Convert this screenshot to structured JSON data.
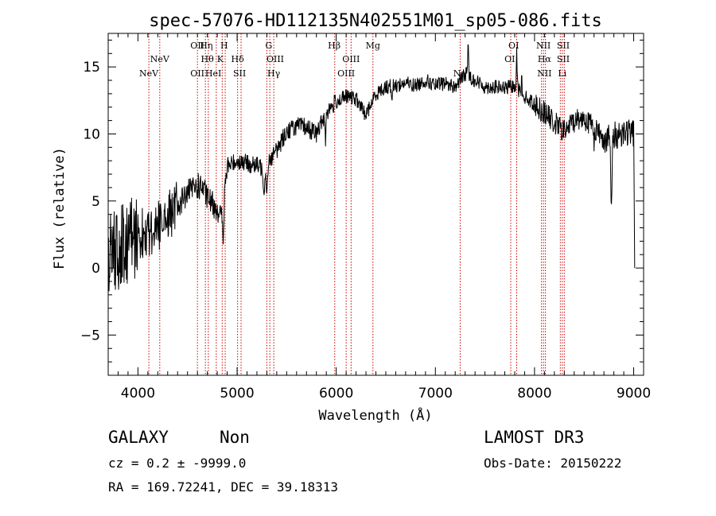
{
  "chart_data": {
    "type": "line",
    "title": "spec-57076-HD112135N402551M01_sp05-086.fits",
    "xlabel": "Wavelength (Å)",
    "ylabel": "Flux (relative)",
    "xlim": [
      3700,
      9100
    ],
    "ylim": [
      -8,
      17.5
    ],
    "x_ticks": [
      4000,
      5000,
      6000,
      7000,
      8000,
      9000
    ],
    "y_ticks": [
      -5,
      0,
      5,
      10,
      15
    ],
    "continuum_anchors": [
      [
        3700,
        1.0
      ],
      [
        3800,
        1.5
      ],
      [
        3900,
        2.0
      ],
      [
        4000,
        2.5
      ],
      [
        4100,
        2.8
      ],
      [
        4200,
        3.2
      ],
      [
        4300,
        3.8
      ],
      [
        4400,
        4.6
      ],
      [
        4500,
        5.6
      ],
      [
        4600,
        6.1
      ],
      [
        4650,
        6.0
      ],
      [
        4700,
        5.2
      ],
      [
        4750,
        4.8
      ],
      [
        4800,
        4.5
      ],
      [
        4850,
        3.6
      ],
      [
        4900,
        7.6
      ],
      [
        5000,
        8.0
      ],
      [
        5100,
        7.8
      ],
      [
        5200,
        7.6
      ],
      [
        5250,
        7.5
      ],
      [
        5300,
        6.6
      ],
      [
        5320,
        8.0
      ],
      [
        5400,
        8.8
      ],
      [
        5500,
        10.2
      ],
      [
        5600,
        10.6
      ],
      [
        5700,
        10.5
      ],
      [
        5800,
        10.0
      ],
      [
        5850,
        10.8
      ],
      [
        5900,
        11.6
      ],
      [
        6000,
        12.4
      ],
      [
        6100,
        12.8
      ],
      [
        6200,
        12.6
      ],
      [
        6300,
        11.4
      ],
      [
        6400,
        13.0
      ],
      [
        6500,
        13.5
      ],
      [
        6600,
        13.6
      ],
      [
        6700,
        13.8
      ],
      [
        6800,
        13.6
      ],
      [
        6900,
        14.0
      ],
      [
        7000,
        13.6
      ],
      [
        7100,
        13.8
      ],
      [
        7200,
        13.5
      ],
      [
        7300,
        14.5
      ],
      [
        7400,
        14.0
      ],
      [
        7500,
        13.5
      ],
      [
        7600,
        13.5
      ],
      [
        7700,
        13.4
      ],
      [
        7800,
        13.6
      ],
      [
        7900,
        12.8
      ],
      [
        8000,
        12.2
      ],
      [
        8100,
        11.6
      ],
      [
        8200,
        10.8
      ],
      [
        8300,
        10.2
      ],
      [
        8400,
        11.0
      ],
      [
        8500,
        11.2
      ],
      [
        8600,
        10.5
      ],
      [
        8700,
        9.6
      ],
      [
        8800,
        9.8
      ],
      [
        8900,
        10.2
      ],
      [
        9000,
        10.0
      ]
    ],
    "absorption_features": [
      {
        "x": 4861,
        "depth": 2.5,
        "width": 6
      },
      {
        "x": 5270,
        "depth": 1.2,
        "width": 8
      },
      {
        "x": 5300,
        "depth": 1.0,
        "width": 4
      },
      {
        "x": 5892,
        "depth": 1.8,
        "width": 6
      },
      {
        "x": 6563,
        "depth": 0.8,
        "width": 6
      },
      {
        "x": 8600,
        "depth": 1.0,
        "width": 5
      },
      {
        "x": 8775,
        "depth": 6.0,
        "width": 8
      }
    ],
    "emission_features": [
      {
        "x": 7330,
        "height": 2.5,
        "width": 6
      },
      {
        "x": 7820,
        "height": 3.5,
        "width": 5
      },
      {
        "x": 7870,
        "height": 2.0,
        "width": 4
      }
    ],
    "end_drop": {
      "x": 9010,
      "value": 0
    },
    "spectral_lines": [
      {
        "label": "NeV",
        "x": 4110,
        "row": 3
      },
      {
        "label": "NeV",
        "x": 4220,
        "row": 2
      },
      {
        "label": "OII",
        "x": 4600,
        "row": 1
      },
      {
        "label": "OII",
        "x": 4600,
        "row": 3
      },
      {
        "label": "Hη",
        "x": 4690,
        "row": 1
      },
      {
        "label": "Hθ",
        "x": 4700,
        "row": 2
      },
      {
        "label": "HeI",
        "x": 4760,
        "row": 3
      },
      {
        "label": "K",
        "x": 4830,
        "row": 2
      },
      {
        "label": "H",
        "x": 4870,
        "row": 1
      },
      {
        "label": "Hδ",
        "x": 5005,
        "row": 2
      },
      {
        "label": "SII",
        "x": 5025,
        "row": 3
      },
      {
        "label": "G",
        "x": 5320,
        "row": 1
      },
      {
        "label": "OIII",
        "x": 5385,
        "row": 2
      },
      {
        "label": "Hγ",
        "x": 5370,
        "row": 3
      },
      {
        "label": "Hβ",
        "x": 5980,
        "row": 1
      },
      {
        "label": "OIII",
        "x": 6100,
        "row": 3
      },
      {
        "label": "OIII",
        "x": 6150,
        "row": 2
      },
      {
        "label": "Mg",
        "x": 6370,
        "row": 1
      },
      {
        "label": "Na",
        "x": 7245,
        "row": 3
      },
      {
        "label": "OI",
        "x": 7790,
        "row": 1
      },
      {
        "label": "OI",
        "x": 7750,
        "row": 2
      },
      {
        "label": "NII",
        "x": 8090,
        "row": 1
      },
      {
        "label": "Hα",
        "x": 8100,
        "row": 2
      },
      {
        "label": "NII",
        "x": 8100,
        "row": 3
      },
      {
        "label": "SII",
        "x": 8290,
        "row": 1
      },
      {
        "label": "SII",
        "x": 8290,
        "row": 2
      },
      {
        "label": "Li",
        "x": 8280,
        "row": 3
      }
    ],
    "marker_lines_x": [
      4110,
      4220,
      4600,
      4680,
      4710,
      4790,
      4850,
      4880,
      5005,
      5040,
      5300,
      5330,
      5370,
      5985,
      6100,
      6150,
      6370,
      7250,
      7760,
      7820,
      8070,
      8090,
      8110,
      8260,
      8280,
      8300
    ],
    "marker_color": "#cc0000",
    "line_color": "#000000"
  },
  "info": {
    "class": "GALAXY",
    "subclass": "Non",
    "survey": "LAMOST DR3",
    "cz": "cz = 0.2 ± -9999.0",
    "obs_date": "Obs-Date: 20150222",
    "coords": "RA = 169.72241, DEC =  39.18313"
  }
}
